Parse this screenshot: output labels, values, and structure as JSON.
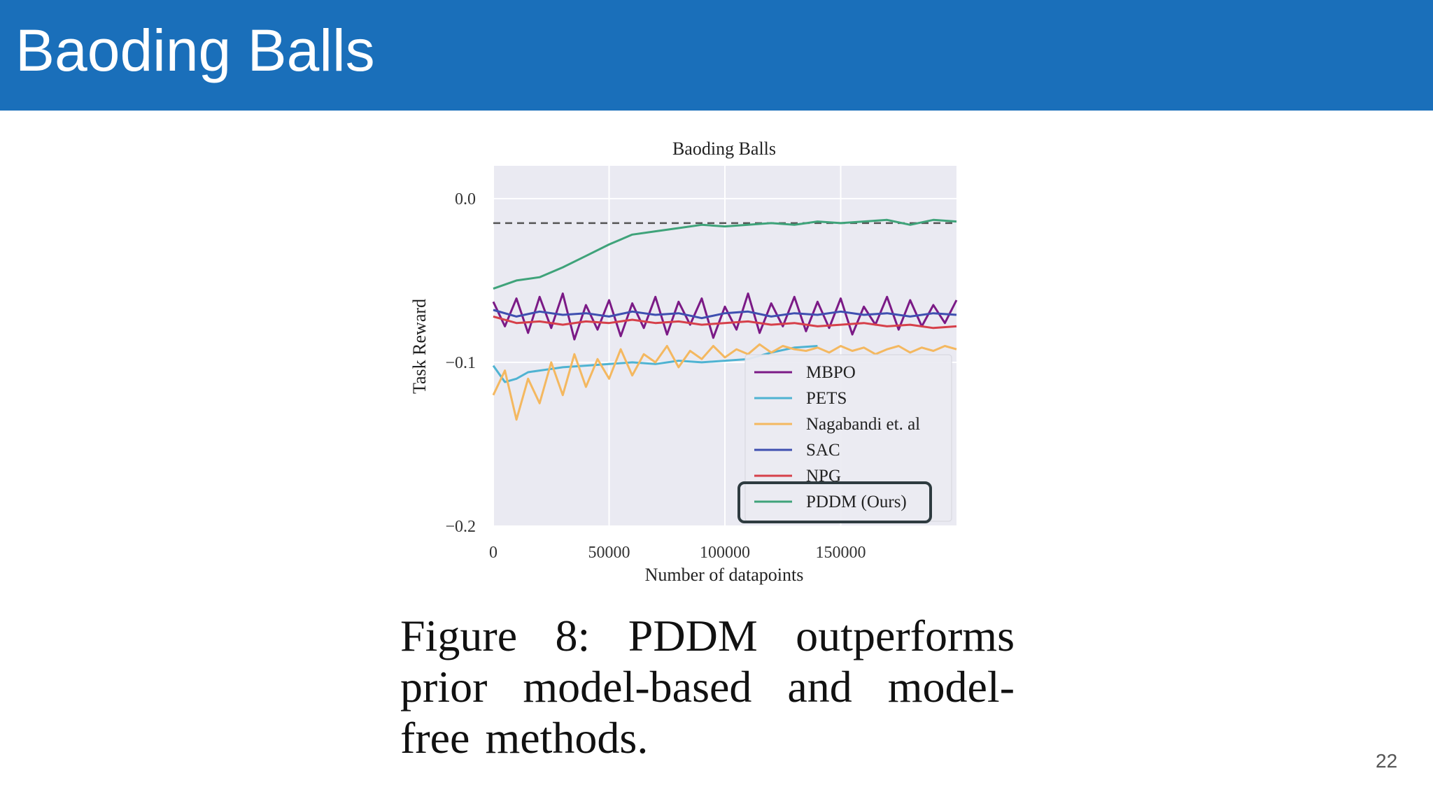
{
  "slide": {
    "title": "Baoding Balls",
    "page_number": "22",
    "caption_words": [
      [
        "Figure",
        "8:",
        "PDDM",
        "outperforms"
      ],
      [
        "prior",
        "model-based",
        "and",
        "model-"
      ],
      [
        "free",
        "methods."
      ]
    ],
    "colors": {
      "header": "#1a6fba",
      "title_text": "#ffffff"
    }
  },
  "chart_data": {
    "type": "line",
    "title": "Baoding Balls",
    "xlabel": "Number of datapoints",
    "ylabel": "Task Reward",
    "xlim": [
      0,
      200000
    ],
    "ylim": [
      -0.2,
      0.02
    ],
    "xticks": [
      0,
      50000,
      100000,
      150000
    ],
    "xtick_labels": [
      "0",
      "50000",
      "100000",
      "150000"
    ],
    "yticks": [
      0.0,
      -0.1,
      -0.2
    ],
    "ytick_labels": [
      "0.0",
      "−0.1",
      "−0.2"
    ],
    "grid": true,
    "legend_position": "lower-right",
    "reference_line": {
      "y": -0.015,
      "style": "dashed",
      "color": "#555555"
    },
    "highlighted_legend_entry": "PDDM (Ours)",
    "series": [
      {
        "name": "MBPO",
        "color": "#7b1a86",
        "x": [
          0,
          5000,
          10000,
          15000,
          20000,
          25000,
          30000,
          35000,
          40000,
          45000,
          50000,
          55000,
          60000,
          65000,
          70000,
          75000,
          80000,
          85000,
          90000,
          95000,
          100000,
          105000,
          110000,
          115000,
          120000,
          125000,
          130000,
          135000,
          140000,
          145000,
          150000,
          155000,
          160000,
          165000,
          170000,
          175000,
          180000,
          185000,
          190000,
          195000,
          200000
        ],
        "y": [
          -0.063,
          -0.078,
          -0.061,
          -0.082,
          -0.06,
          -0.079,
          -0.058,
          -0.086,
          -0.065,
          -0.08,
          -0.062,
          -0.084,
          -0.064,
          -0.079,
          -0.06,
          -0.083,
          -0.063,
          -0.077,
          -0.061,
          -0.085,
          -0.066,
          -0.08,
          -0.058,
          -0.082,
          -0.064,
          -0.078,
          -0.06,
          -0.081,
          -0.063,
          -0.079,
          -0.061,
          -0.083,
          -0.066,
          -0.077,
          -0.06,
          -0.08,
          -0.062,
          -0.078,
          -0.065,
          -0.076,
          -0.062
        ]
      },
      {
        "name": "PETS",
        "color": "#4fb3d2",
        "x": [
          0,
          5000,
          10000,
          15000,
          20000,
          25000,
          30000,
          40000,
          50000,
          60000,
          70000,
          80000,
          90000,
          100000,
          110000,
          120000,
          130000,
          140000
        ],
        "y": [
          -0.102,
          -0.112,
          -0.11,
          -0.106,
          -0.105,
          -0.104,
          -0.103,
          -0.102,
          -0.101,
          -0.1,
          -0.101,
          -0.099,
          -0.1,
          -0.099,
          -0.098,
          -0.094,
          -0.091,
          -0.09
        ]
      },
      {
        "name": "Nagabandi et. al",
        "color": "#f4b860",
        "x": [
          0,
          5000,
          10000,
          15000,
          20000,
          25000,
          30000,
          35000,
          40000,
          45000,
          50000,
          55000,
          60000,
          65000,
          70000,
          75000,
          80000,
          85000,
          90000,
          95000,
          100000,
          105000,
          110000,
          115000,
          120000,
          125000,
          130000,
          135000,
          140000,
          145000,
          150000,
          155000,
          160000,
          165000,
          170000,
          175000,
          180000,
          185000,
          190000,
          195000,
          200000
        ],
        "y": [
          -0.12,
          -0.105,
          -0.135,
          -0.11,
          -0.125,
          -0.1,
          -0.12,
          -0.095,
          -0.115,
          -0.098,
          -0.11,
          -0.092,
          -0.108,
          -0.095,
          -0.1,
          -0.09,
          -0.103,
          -0.093,
          -0.098,
          -0.09,
          -0.097,
          -0.092,
          -0.095,
          -0.089,
          -0.094,
          -0.09,
          -0.092,
          -0.093,
          -0.091,
          -0.094,
          -0.09,
          -0.093,
          -0.091,
          -0.095,
          -0.092,
          -0.09,
          -0.094,
          -0.091,
          -0.093,
          -0.09,
          -0.092
        ]
      },
      {
        "name": "SAC",
        "color": "#3f4fb0",
        "x": [
          0,
          10000,
          20000,
          30000,
          40000,
          50000,
          60000,
          70000,
          80000,
          90000,
          100000,
          110000,
          120000,
          130000,
          140000,
          150000,
          160000,
          170000,
          180000,
          190000,
          200000
        ],
        "y": [
          -0.068,
          -0.072,
          -0.069,
          -0.071,
          -0.07,
          -0.072,
          -0.069,
          -0.071,
          -0.07,
          -0.073,
          -0.07,
          -0.069,
          -0.072,
          -0.07,
          -0.071,
          -0.069,
          -0.071,
          -0.07,
          -0.072,
          -0.07,
          -0.071
        ]
      },
      {
        "name": "NPG",
        "color": "#d6404a",
        "x": [
          0,
          10000,
          20000,
          30000,
          40000,
          50000,
          60000,
          70000,
          80000,
          90000,
          100000,
          110000,
          120000,
          130000,
          140000,
          150000,
          160000,
          170000,
          180000,
          190000,
          200000
        ],
        "y": [
          -0.072,
          -0.076,
          -0.075,
          -0.077,
          -0.075,
          -0.076,
          -0.074,
          -0.076,
          -0.075,
          -0.077,
          -0.076,
          -0.075,
          -0.077,
          -0.076,
          -0.078,
          -0.077,
          -0.076,
          -0.078,
          -0.077,
          -0.079,
          -0.078
        ]
      },
      {
        "name": "PDDM (Ours)",
        "color": "#3fa37a",
        "x": [
          0,
          10000,
          20000,
          30000,
          40000,
          50000,
          60000,
          70000,
          80000,
          90000,
          100000,
          110000,
          120000,
          130000,
          140000,
          150000,
          160000,
          170000,
          180000,
          190000,
          200000
        ],
        "y": [
          -0.055,
          -0.05,
          -0.048,
          -0.042,
          -0.035,
          -0.028,
          -0.022,
          -0.02,
          -0.018,
          -0.016,
          -0.017,
          -0.016,
          -0.015,
          -0.016,
          -0.014,
          -0.015,
          -0.014,
          -0.013,
          -0.016,
          -0.013,
          -0.014
        ]
      }
    ]
  }
}
